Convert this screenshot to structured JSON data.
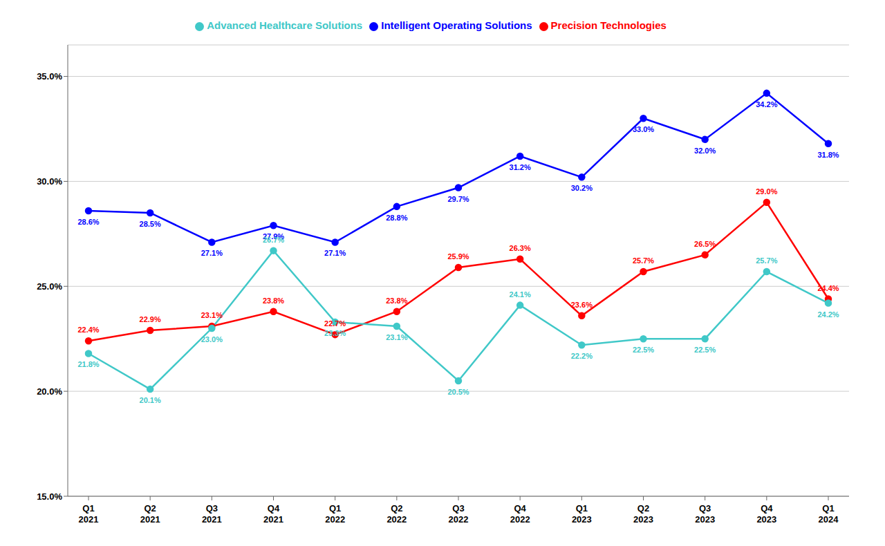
{
  "chart_data": {
    "type": "line",
    "categories": [
      "Q1\n2021",
      "Q2\n2021",
      "Q3\n2021",
      "Q4\n2021",
      "Q1\n2022",
      "Q2\n2022",
      "Q3\n2022",
      "Q4\n2022",
      "Q1\n2023",
      "Q2\n2023",
      "Q3\n2023",
      "Q4\n2023",
      "Q1\n2024"
    ],
    "series": [
      {
        "name": "Intelligent Operating Solutions",
        "color": "#0000FF",
        "marker": "circle",
        "values": [
          28.6,
          28.5,
          27.1,
          27.9,
          27.1,
          28.8,
          29.7,
          31.2,
          30.2,
          33.0,
          32.0,
          34.2,
          31.8
        ],
        "value_labels": [
          "28.6%",
          "28.5%",
          "27.1%",
          "27.9%",
          "27.1%",
          "28.8%",
          "29.7%",
          "31.2%",
          "30.2%",
          "33.0%",
          "32.0%",
          "34.2%",
          "31.8%"
        ]
      },
      {
        "name": "Precision Technologies",
        "color": "#FF0000",
        "marker": "circle",
        "values": [
          22.4,
          22.9,
          23.1,
          23.8,
          22.7,
          23.8,
          25.9,
          26.3,
          23.6,
          25.7,
          26.5,
          29.0,
          24.4
        ],
        "value_labels": [
          "22.4%",
          "22.9%",
          "23.1%",
          "23.8%",
          "22.7%",
          "23.8%",
          "25.9%",
          "26.3%",
          "23.6%",
          "25.7%",
          "26.5%",
          "29.0%",
          "24.4%"
        ]
      },
      {
        "name": "Advanced Healthcare Solutions",
        "color": "#40C8C8",
        "marker": "circle",
        "values": [
          21.8,
          20.1,
          23.0,
          26.7,
          23.3,
          23.1,
          20.5,
          24.1,
          22.2,
          22.5,
          22.5,
          25.7,
          24.2
        ],
        "value_labels": [
          "21.8%",
          "20.1%",
          "23.0%",
          "26.7%",
          "23.3%",
          "23.1%",
          "20.5%",
          "24.1%",
          "22.2%",
          "22.5%",
          "22.5%",
          "25.7%",
          "24.2%"
        ]
      }
    ],
    "ylim": [
      15.0,
      36.5
    ],
    "yticks": [
      {
        "value": 15.0,
        "label": "15.0%"
      },
      {
        "value": 20.0,
        "label": "20.0%"
      },
      {
        "value": 25.0,
        "label": "25.0%"
      },
      {
        "value": 30.0,
        "label": "30.0%"
      },
      {
        "value": 35.0,
        "label": "35.0%"
      }
    ],
    "grid": true,
    "legend": "top",
    "data_labels": true
  }
}
